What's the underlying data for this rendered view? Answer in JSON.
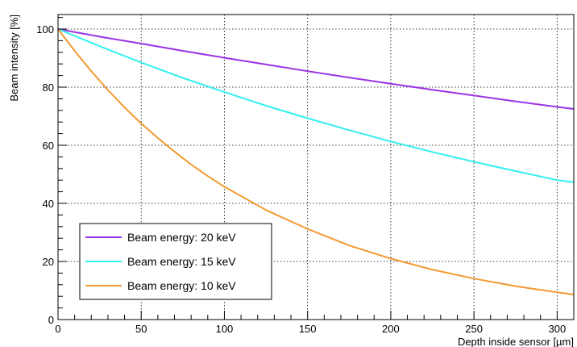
{
  "chart_data": {
    "type": "line",
    "xlabel": "Depth inside sensor [µm]",
    "ylabel": "Beam intensity [%]",
    "xlim": [
      0,
      310
    ],
    "ylim": [
      0,
      105
    ],
    "xticks": [
      0,
      50,
      100,
      150,
      200,
      250,
      300
    ],
    "yticks": [
      0,
      20,
      40,
      60,
      80,
      100
    ],
    "grid": true,
    "legend_position": "bottom-left",
    "series": [
      {
        "name": "Beam energy: 20 keV",
        "color": "#9a33e6",
        "x": [
          0,
          25,
          50,
          75,
          100,
          125,
          150,
          175,
          200,
          225,
          250,
          275,
          300,
          310
        ],
        "y": [
          100,
          97.4,
          95.0,
          92.5,
          90.1,
          87.8,
          85.5,
          83.3,
          81.2,
          79.1,
          77.1,
          75.1,
          73.2,
          72.5
        ]
      },
      {
        "name": "Beam energy: 15 keV",
        "color": "#33f0f0",
        "x": [
          0,
          25,
          50,
          75,
          100,
          125,
          150,
          175,
          200,
          225,
          250,
          275,
          300,
          310
        ],
        "y": [
          100,
          94.1,
          88.5,
          83.2,
          78.3,
          73.6,
          69.3,
          65.2,
          61.3,
          57.7,
          54.3,
          51.1,
          48.0,
          47.3
        ]
      },
      {
        "name": "Beam energy: 10 keV",
        "color": "#f39a33",
        "x": [
          0,
          10,
          20,
          30,
          40,
          50,
          60,
          70,
          80,
          90,
          100,
          125,
          150,
          175,
          200,
          225,
          250,
          275,
          300,
          310
        ],
        "y": [
          100,
          92.5,
          85.5,
          79.0,
          73.0,
          67.5,
          62.5,
          57.8,
          53.4,
          49.4,
          45.7,
          37.7,
          31.2,
          25.5,
          21.0,
          17.2,
          14.1,
          11.5,
          9.4,
          8.6
        ]
      }
    ]
  }
}
